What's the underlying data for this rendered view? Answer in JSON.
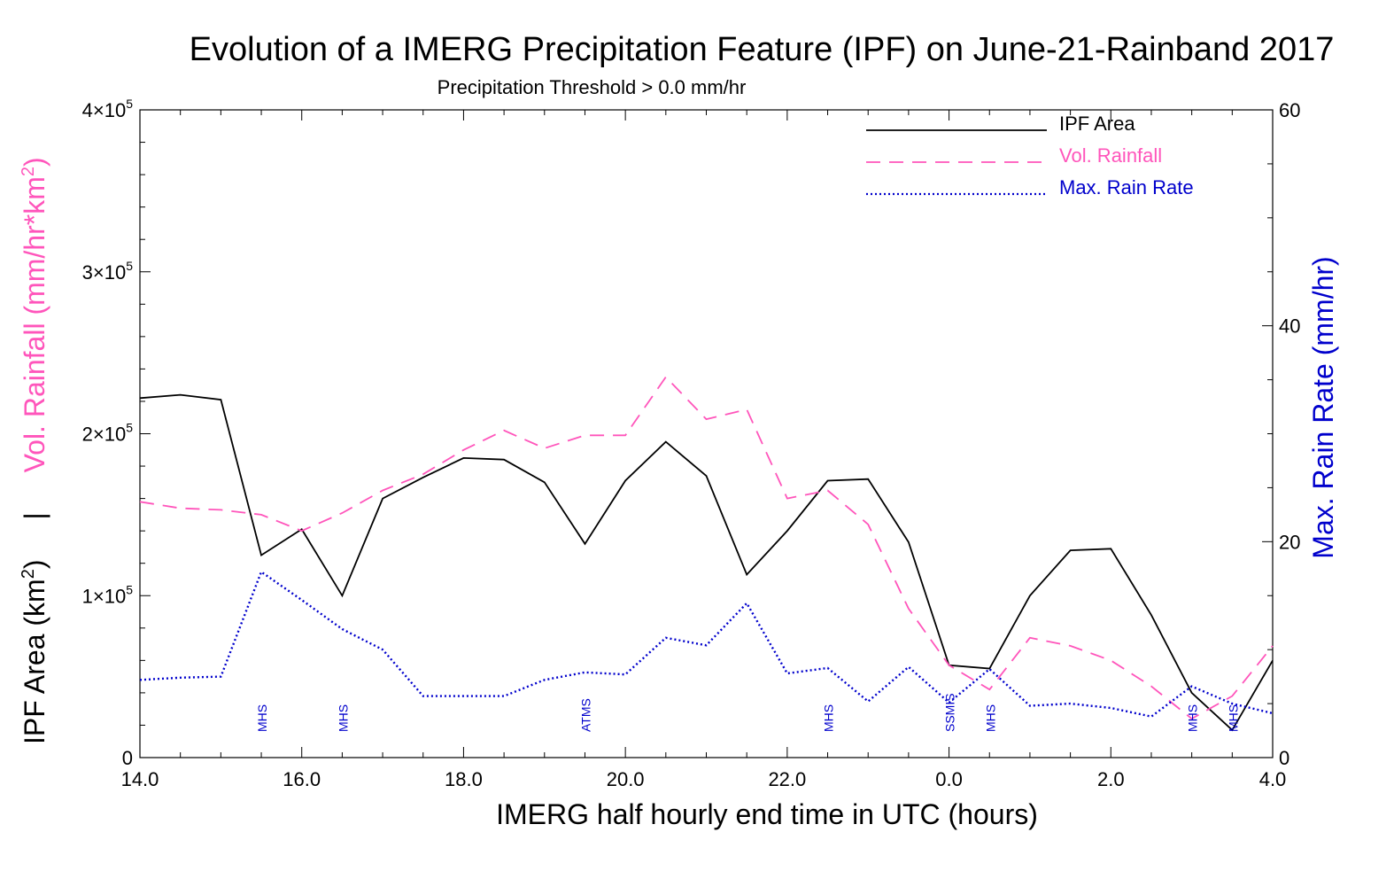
{
  "chart_data": {
    "type": "line",
    "title": "Evolution of a IMERG Precipitation Feature (IPF) on June-21-Rainband 2017",
    "subtitle": "Precipitation Threshold > 0.0 mm/hr",
    "xlabel": "IMERG half hourly end time in UTC (hours)",
    "ylabel_left": {
      "part1": "IPF Area (km",
      "part1_sup": "2",
      "part1_end": ")",
      "separator": "|",
      "part2": "Vol. Rainfall (mm/hr*km",
      "part2_sup": "2",
      "part2_end": ")"
    },
    "ylabel_right": "Max. Rain Rate (mm/hr)",
    "x_tick_labels": [
      "14.0",
      "16.0",
      "18.0",
      "20.0",
      "22.0",
      "0.0",
      "2.0",
      "4.0"
    ],
    "xlim": [
      14,
      28
    ],
    "ylim_left": [
      0,
      400000
    ],
    "ylim_right": [
      0,
      60
    ],
    "y_left_tick_labels": [
      {
        "value": 0,
        "mantissa": "0",
        "exp": ""
      },
      {
        "value": 100000,
        "mantissa": "1×10",
        "exp": "5"
      },
      {
        "value": 200000,
        "mantissa": "2×10",
        "exp": "5"
      },
      {
        "value": 300000,
        "mantissa": "3×10",
        "exp": "5"
      },
      {
        "value": 400000,
        "mantissa": "4×10",
        "exp": "5"
      }
    ],
    "y_right_tick_labels": [
      "0",
      "20",
      "40",
      "60"
    ],
    "x": [
      14.0,
      14.5,
      15.0,
      15.5,
      16.0,
      16.5,
      17.0,
      17.5,
      18.0,
      18.5,
      19.0,
      19.5,
      20.0,
      20.5,
      21.0,
      21.5,
      22.0,
      22.5,
      23.0,
      23.5,
      24.0,
      24.5,
      25.0,
      25.5,
      26.0,
      26.5,
      27.0,
      27.5,
      28.0
    ],
    "series": [
      {
        "name": "IPF Area",
        "axis": "left",
        "style": "solid",
        "color": "#000000",
        "values": [
          222000,
          224000,
          221000,
          125000,
          141000,
          100000,
          160000,
          173000,
          185000,
          184000,
          170000,
          132000,
          171000,
          195000,
          174000,
          113000,
          140000,
          171000,
          172000,
          133000,
          57000,
          55000,
          100000,
          128000,
          129000,
          88000,
          40000,
          17000,
          60000
        ]
      },
      {
        "name": "Vol. Rainfall",
        "axis": "left",
        "style": "dashed",
        "color": "#ff55bb",
        "values": [
          158000,
          154000,
          153000,
          150000,
          140000,
          151000,
          165000,
          175000,
          190000,
          202000,
          191000,
          199000,
          199000,
          235000,
          209000,
          215000,
          160000,
          165000,
          144000,
          92000,
          57000,
          42000,
          74000,
          69000,
          60000,
          44000,
          24000,
          38000,
          69000
        ]
      },
      {
        "name": "Max. Rain Rate",
        "axis": "right",
        "style": "dotted",
        "color": "#0000cc",
        "values": [
          7.2,
          7.4,
          7.5,
          17.2,
          14.6,
          11.9,
          10.0,
          5.7,
          5.7,
          5.7,
          7.2,
          7.9,
          7.7,
          11.1,
          10.4,
          14.3,
          7.8,
          8.3,
          5.2,
          8.4,
          5.1,
          8.2,
          4.8,
          5.0,
          4.6,
          3.8,
          6.6,
          5.0,
          4.1
        ]
      }
    ],
    "annotations": [
      {
        "x": 15.5,
        "text": "MHS"
      },
      {
        "x": 16.5,
        "text": "MHS"
      },
      {
        "x": 19.5,
        "text": "ATMS"
      },
      {
        "x": 22.5,
        "text": "MHS"
      },
      {
        "x": 24.0,
        "text": "SSMIS"
      },
      {
        "x": 24.5,
        "text": "MHS"
      },
      {
        "x": 27.0,
        "text": "MHS"
      },
      {
        "x": 27.5,
        "text": "MHS"
      }
    ],
    "legend_position": "top-right",
    "grid": false,
    "colors": {
      "axis": "#000000",
      "vol_rainfall": "#ff55bb",
      "max_rain_rate": "#0000cc",
      "annotation": "#0000cc"
    }
  }
}
